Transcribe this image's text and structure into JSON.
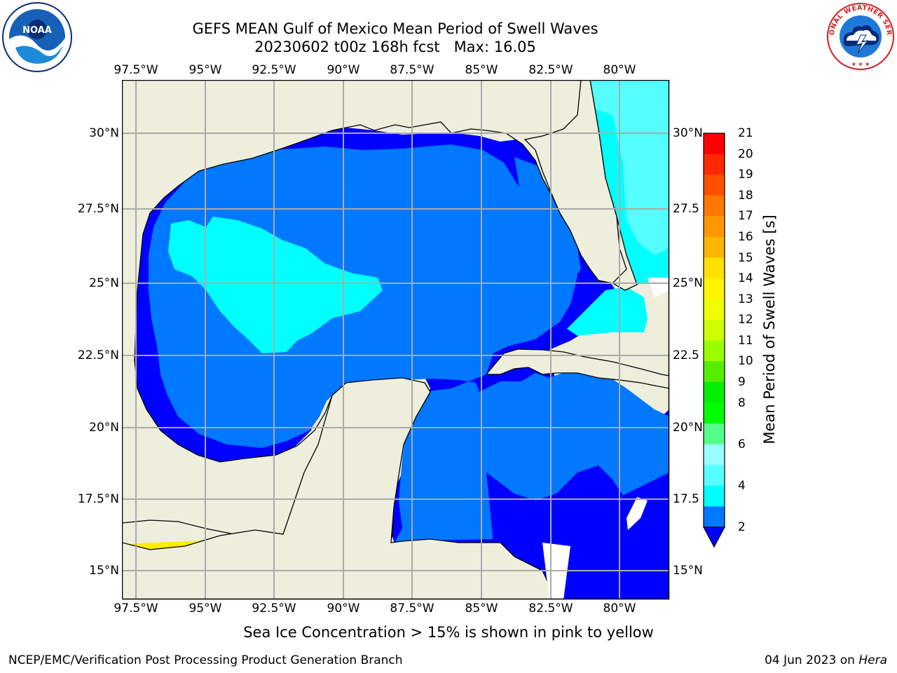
{
  "title": "GEFS MEAN Gulf of Mexico Mean Period of Swell Waves",
  "subtitle": "20230602 t00z 168h fcst   Max: 16.05",
  "logos": {
    "left": "NOAA",
    "right": "NATIONAL WEATHER SERVICE"
  },
  "map": {
    "lon_ticks": [
      "97.5°W",
      "95°W",
      "92.5°W",
      "90°W",
      "87.5°W",
      "85°W",
      "82.5°W",
      "80°W"
    ],
    "lat_ticks_left": [
      "30°N",
      "27.5°N",
      "25°N",
      "22.5°N",
      "20°N",
      "17.5°N",
      "15°N"
    ],
    "lat_ticks_right": [
      "30°N",
      "27.5",
      "25°N",
      "22.5",
      "20°N",
      "17.5",
      "15°N"
    ],
    "colors": {
      "land": "#eeeedd",
      "band_2_4": "#0078ff",
      "band_below_2": "#0000ff",
      "band_4_6": "#00ffff",
      "band_6_8": "#55ffff",
      "ice_band_15_16": "#ffee00",
      "ice_band_16_17": "#ffbb00"
    }
  },
  "colorbar": {
    "label": "Mean Period of Swell Waves [s]",
    "ticks": [
      "21",
      "20",
      "19",
      "18",
      "17",
      "16",
      "15",
      "14",
      "13",
      "12",
      "11",
      "10",
      "9",
      "8",
      "6",
      "4",
      "2"
    ],
    "colors_top_to_bottom": [
      "#ff0000",
      "#ff2800",
      "#ff5000",
      "#ff7800",
      "#ff9800",
      "#ffb400",
      "#ffe000",
      "#fff500",
      "#eeff00",
      "#ccff00",
      "#99ff00",
      "#55ee00",
      "#00ee00",
      "#00ff00",
      "#55ff88",
      "#99ffff",
      "#55ffff",
      "#00ffff",
      "#0078ff"
    ],
    "extend_color": "#0000ff"
  },
  "caption": "Sea Ice Concentration > 15% is shown in pink to yellow",
  "footer": {
    "left": "NCEP/EMC/Verification Post Processing Product Generation Branch",
    "date": "04 Jun 2023 on ",
    "host": "Hera"
  }
}
